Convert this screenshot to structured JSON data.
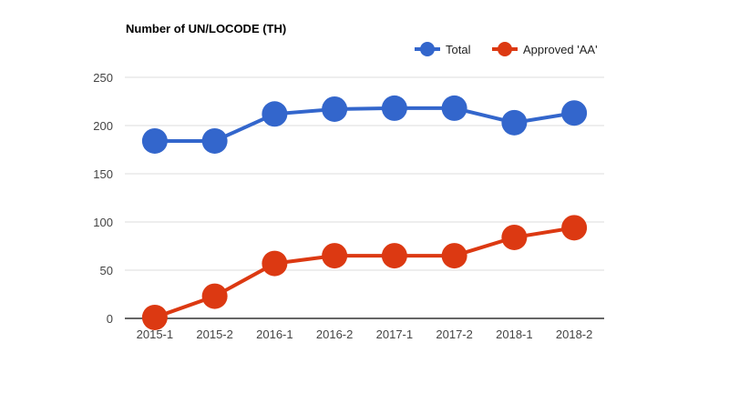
{
  "chart_data": {
    "type": "line",
    "title": "Number of UN/LOCODE (TH)",
    "xlabel": "",
    "ylabel": "",
    "categories": [
      "2015-1",
      "2015-2",
      "2016-1",
      "2016-2",
      "2017-1",
      "2017-2",
      "2018-1",
      "2018-2"
    ],
    "ylim": [
      0,
      250
    ],
    "yticks": [
      0,
      50,
      100,
      150,
      200,
      250
    ],
    "grid": true,
    "legend_position": "top-right",
    "series": [
      {
        "name": "Total",
        "color": "#3366cc",
        "values": [
          184,
          184,
          212,
          217,
          218,
          218,
          203,
          213
        ]
      },
      {
        "name": "Approved 'AA'",
        "color": "#dc3912",
        "values": [
          1,
          23,
          57,
          65,
          65,
          65,
          84,
          94
        ]
      }
    ]
  }
}
